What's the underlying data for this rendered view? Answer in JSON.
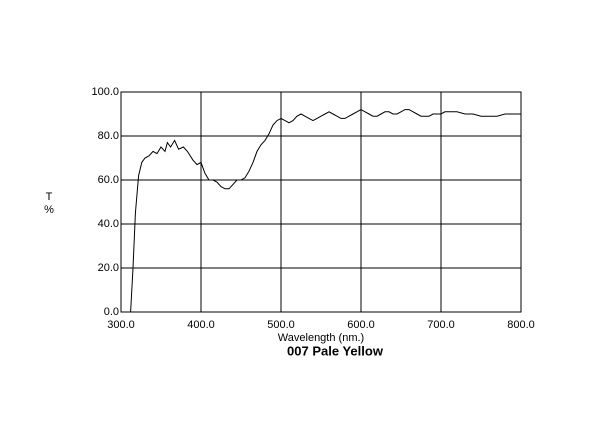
{
  "chart_data": {
    "type": "line",
    "title": "007 Pale Yellow",
    "xlabel": "Wavelength (nm.)",
    "ylabel_lines": [
      "T",
      "%"
    ],
    "xlim": [
      300,
      800
    ],
    "ylim": [
      0,
      100
    ],
    "grid": true,
    "color": "#000000",
    "xticks": [
      {
        "value": 300,
        "label": "300.0"
      },
      {
        "value": 400,
        "label": "400.0"
      },
      {
        "value": 500,
        "label": "500.0"
      },
      {
        "value": 600,
        "label": "600.0"
      },
      {
        "value": 700,
        "label": "700.0"
      },
      {
        "value": 800,
        "label": "800.0"
      }
    ],
    "yticks": [
      {
        "value": 0,
        "label": "0.0"
      },
      {
        "value": 20,
        "label": "20.0"
      },
      {
        "value": 40,
        "label": "40.0"
      },
      {
        "value": 60,
        "label": "60.0"
      },
      {
        "value": 80,
        "label": "80.0"
      },
      {
        "value": 100,
        "label": "100.0"
      }
    ],
    "x": [
      312,
      315,
      318,
      322,
      326,
      330,
      335,
      340,
      345,
      350,
      355,
      358,
      362,
      367,
      372,
      378,
      383,
      390,
      395,
      400,
      405,
      410,
      415,
      420,
      425,
      430,
      435,
      440,
      445,
      450,
      455,
      460,
      465,
      470,
      475,
      480,
      485,
      490,
      495,
      500,
      505,
      510,
      515,
      520,
      525,
      530,
      535,
      540,
      545,
      550,
      555,
      560,
      565,
      570,
      575,
      580,
      585,
      590,
      595,
      600,
      605,
      610,
      615,
      620,
      625,
      630,
      635,
      640,
      645,
      650,
      655,
      660,
      665,
      670,
      675,
      680,
      685,
      690,
      695,
      700,
      705,
      710,
      715,
      720,
      730,
      740,
      750,
      760,
      770,
      780,
      790,
      800
    ],
    "values": [
      0,
      20,
      45,
      62,
      68,
      70,
      71,
      73,
      72,
      75,
      73,
      77,
      75,
      78,
      74,
      75,
      73,
      69,
      67,
      68,
      63,
      60,
      60,
      59,
      57,
      56,
      56,
      58,
      60,
      60,
      61,
      64,
      68,
      73,
      76,
      78,
      81,
      85,
      87,
      88,
      87,
      86,
      87,
      89,
      90,
      89,
      88,
      87,
      88,
      89,
      90,
      91,
      90,
      89,
      88,
      88,
      89,
      90,
      91,
      92,
      91,
      90,
      89,
      89,
      90,
      91,
      91,
      90,
      90,
      91,
      92,
      92,
      91,
      90,
      89,
      89,
      89,
      90,
      90,
      90,
      91,
      91,
      91,
      91,
      90,
      90,
      89,
      89,
      89,
      90,
      90,
      90
    ]
  }
}
